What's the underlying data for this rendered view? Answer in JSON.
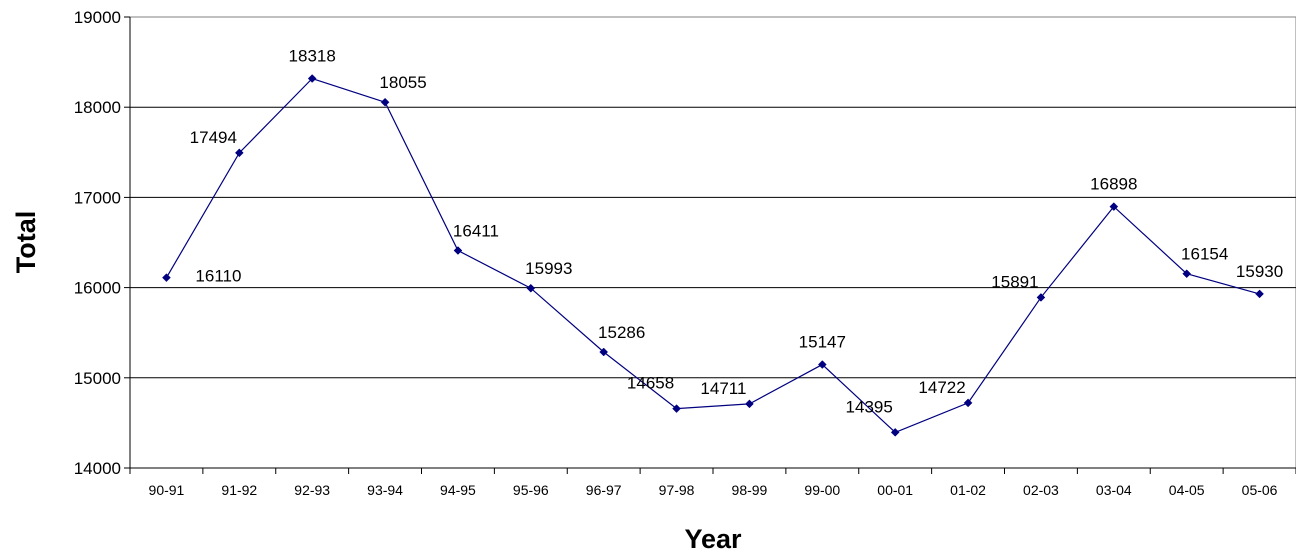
{
  "chart_data": {
    "type": "line",
    "title": "",
    "xlabel": "Year",
    "ylabel": "Total",
    "categories": [
      "90-91",
      "91-92",
      "92-93",
      "93-94",
      "94-95",
      "95-96",
      "96-97",
      "97-98",
      "98-99",
      "99-00",
      "00-01",
      "01-02",
      "02-03",
      "03-04",
      "04-05",
      "05-06"
    ],
    "series": [
      {
        "values": [
          16110,
          17494,
          18318,
          18055,
          16411,
          15993,
          15286,
          14658,
          14711,
          15147,
          14395,
          14722,
          15891,
          16898,
          16154,
          15930
        ],
        "color": "#000080"
      }
    ],
    "ylim": [
      14000,
      19000
    ],
    "yticks": [
      14000,
      15000,
      16000,
      17000,
      18000,
      19000
    ],
    "grid": true,
    "legend": "none"
  }
}
